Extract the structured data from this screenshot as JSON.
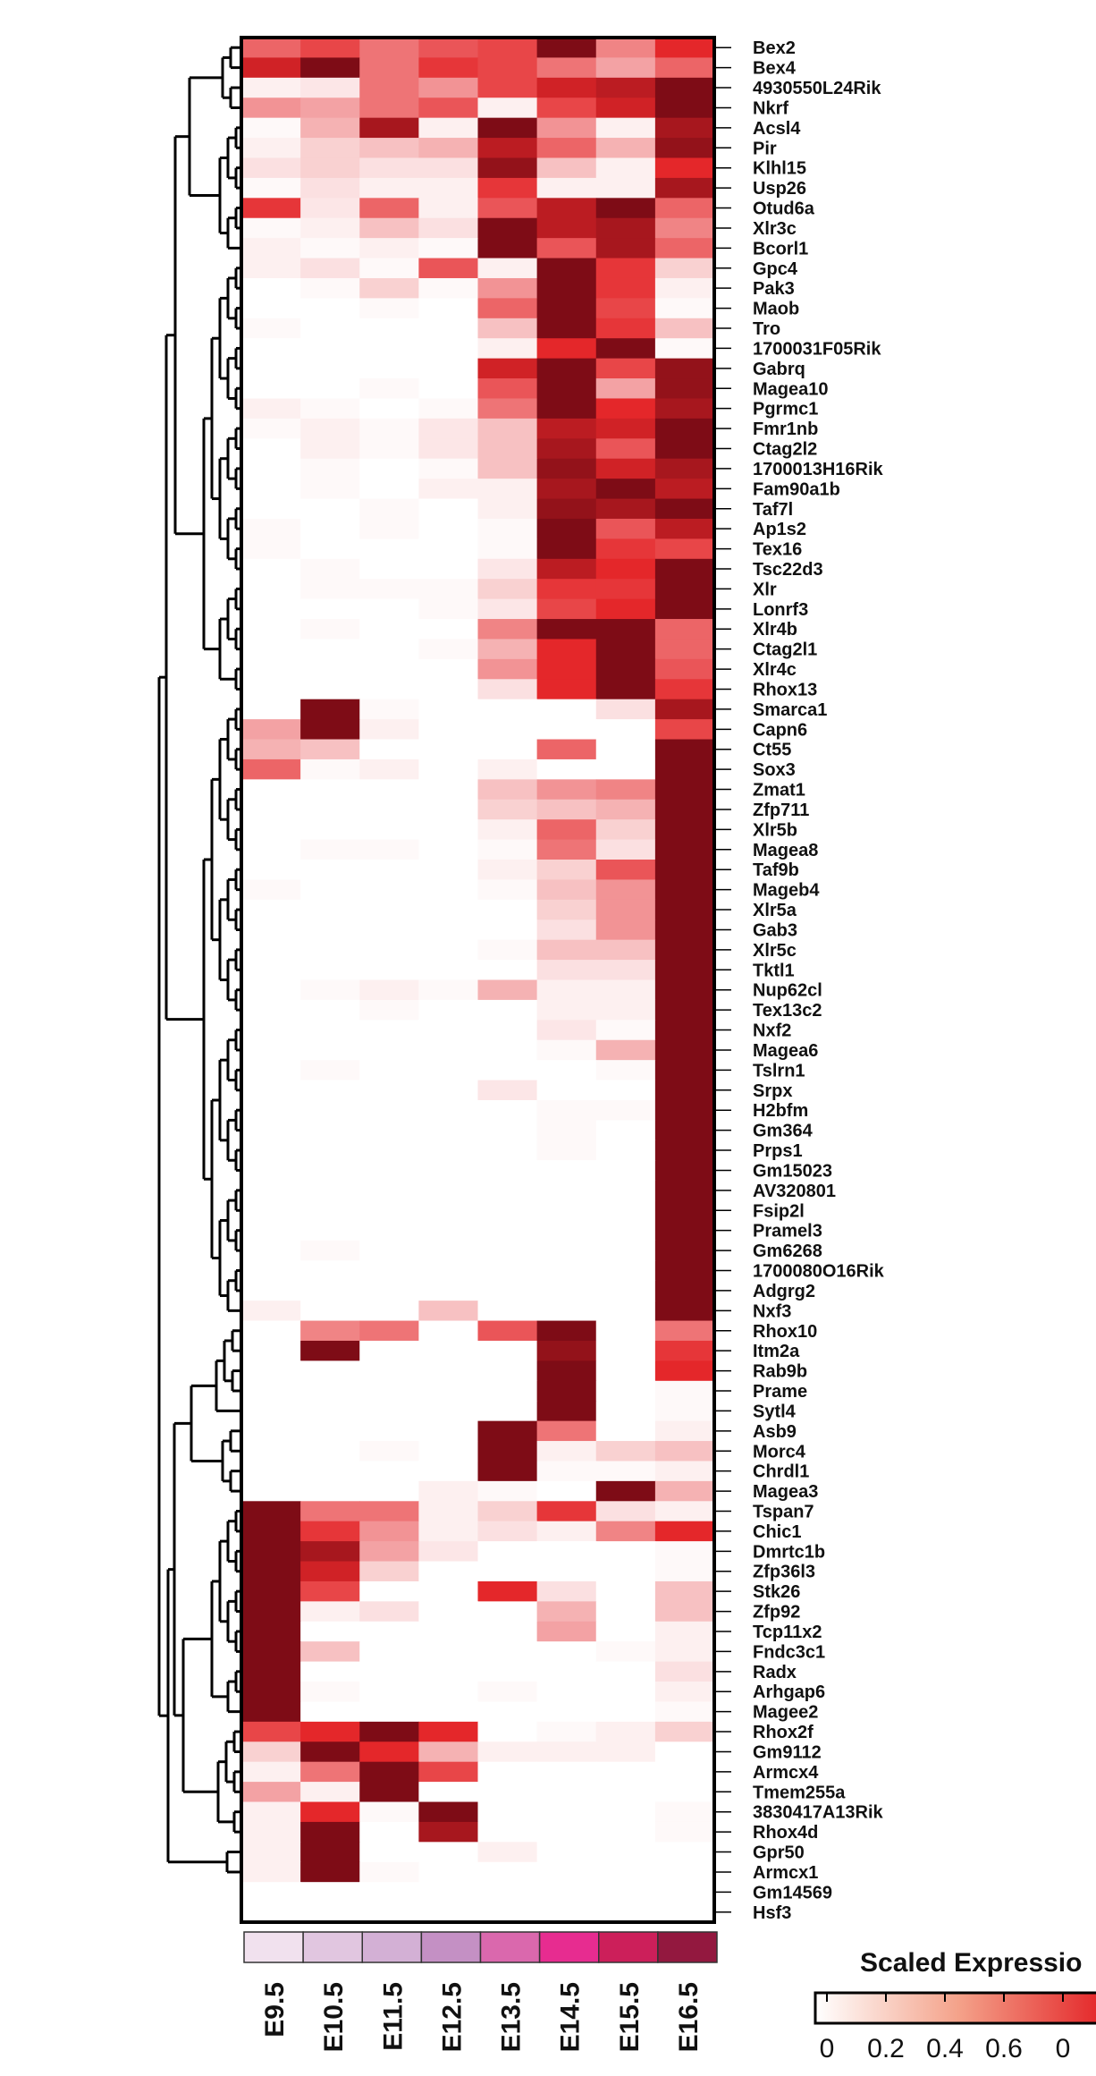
{
  "chart_data": {
    "type": "heatmap",
    "title": "",
    "legend_title": "Scaled Expressio",
    "color_scale": {
      "min": 0,
      "max": 1,
      "low_color": "#ffffff",
      "mid_color": "#e4272a",
      "high_color": "#6a0712"
    },
    "legend_ticks": [
      "0",
      "0.2",
      "0.4",
      "0.6",
      "0"
    ],
    "columns": [
      "E9.5",
      "E10.5",
      "E11.5",
      "E12.5",
      "E13.5",
      "E14.5",
      "E15.5",
      "E16.5"
    ],
    "column_colors": [
      "#f1e1ee",
      "#e1c6e0",
      "#d3b0d5",
      "#c490c4",
      "#da68ad",
      "#e72c90",
      "#cc1f5a",
      "#93183f"
    ],
    "rows": [
      {
        "gene": "Bex2",
        "values": [
          0.5,
          0.6,
          0.45,
          0.55,
          0.6,
          0.95,
          0.4,
          0.7
        ]
      },
      {
        "gene": "Bex4",
        "values": [
          0.75,
          0.95,
          0.45,
          0.65,
          0.6,
          0.45,
          0.3,
          0.5
        ]
      },
      {
        "gene": "4930550L24Rik",
        "values": [
          0.05,
          0.08,
          0.45,
          0.35,
          0.6,
          0.75,
          0.8,
          0.95
        ]
      },
      {
        "gene": "Nkrf",
        "values": [
          0.35,
          0.3,
          0.45,
          0.55,
          0.05,
          0.6,
          0.75,
          0.95
        ]
      },
      {
        "gene": "Acsl4",
        "values": [
          0.02,
          0.25,
          0.85,
          0.05,
          0.95,
          0.35,
          0.05,
          0.85
        ]
      },
      {
        "gene": "Pir",
        "values": [
          0.05,
          0.15,
          0.2,
          0.25,
          0.8,
          0.5,
          0.25,
          0.9
        ]
      },
      {
        "gene": "Klhl15",
        "values": [
          0.1,
          0.15,
          0.1,
          0.1,
          0.9,
          0.2,
          0.05,
          0.7
        ]
      },
      {
        "gene": "Usp26",
        "values": [
          0.02,
          0.1,
          0.05,
          0.05,
          0.65,
          0.05,
          0.05,
          0.85
        ]
      },
      {
        "gene": "Otud6a",
        "values": [
          0.65,
          0.08,
          0.5,
          0.05,
          0.55,
          0.8,
          0.95,
          0.5
        ]
      },
      {
        "gene": "Xlr3c",
        "values": [
          0.02,
          0.05,
          0.2,
          0.1,
          0.95,
          0.8,
          0.85,
          0.4
        ]
      },
      {
        "gene": "Bcorl1",
        "values": [
          0.05,
          0.02,
          0.05,
          0.02,
          0.95,
          0.55,
          0.85,
          0.5
        ]
      },
      {
        "gene": "Gpc4",
        "values": [
          0.05,
          0.1,
          0.02,
          0.55,
          0.05,
          0.95,
          0.65,
          0.15
        ]
      },
      {
        "gene": "Pak3",
        "values": [
          0.0,
          0.02,
          0.15,
          0.02,
          0.35,
          0.95,
          0.65,
          0.05
        ]
      },
      {
        "gene": "Maob",
        "values": [
          0.0,
          0.0,
          0.02,
          0.0,
          0.5,
          0.95,
          0.6,
          0.02
        ]
      },
      {
        "gene": "Tro",
        "values": [
          0.02,
          0.0,
          0.0,
          0.0,
          0.2,
          0.95,
          0.65,
          0.2
        ]
      },
      {
        "gene": "1700031F05Rik",
        "values": [
          0.0,
          0.0,
          0.0,
          0.0,
          0.05,
          0.7,
          0.95,
          0.02
        ]
      },
      {
        "gene": "Gabrq",
        "values": [
          0.0,
          0.0,
          0.0,
          0.0,
          0.75,
          0.95,
          0.6,
          0.9
        ]
      },
      {
        "gene": "Magea10",
        "values": [
          0.0,
          0.0,
          0.02,
          0.0,
          0.55,
          0.95,
          0.3,
          0.9
        ]
      },
      {
        "gene": "Pgrmc1",
        "values": [
          0.05,
          0.02,
          0.0,
          0.02,
          0.45,
          0.95,
          0.7,
          0.85
        ]
      },
      {
        "gene": "Fmr1nb",
        "values": [
          0.02,
          0.05,
          0.02,
          0.08,
          0.2,
          0.8,
          0.75,
          0.95
        ]
      },
      {
        "gene": "Ctag2l2",
        "values": [
          0.0,
          0.05,
          0.02,
          0.08,
          0.2,
          0.85,
          0.55,
          0.95
        ]
      },
      {
        "gene": "1700013H16Rik",
        "values": [
          0.0,
          0.02,
          0.0,
          0.02,
          0.2,
          0.9,
          0.75,
          0.85
        ]
      },
      {
        "gene": "Fam90a1b",
        "values": [
          0.0,
          0.02,
          0.0,
          0.05,
          0.05,
          0.85,
          0.95,
          0.8
        ]
      },
      {
        "gene": "Taf7l",
        "values": [
          0.0,
          0.0,
          0.02,
          0.0,
          0.05,
          0.9,
          0.85,
          0.95
        ]
      },
      {
        "gene": "Ap1s2",
        "values": [
          0.02,
          0.0,
          0.02,
          0.0,
          0.02,
          0.95,
          0.55,
          0.8
        ]
      },
      {
        "gene": "Tex16",
        "values": [
          0.02,
          0.0,
          0.0,
          0.0,
          0.02,
          0.95,
          0.65,
          0.6
        ]
      },
      {
        "gene": "Tsc22d3",
        "values": [
          0.0,
          0.02,
          0.0,
          0.0,
          0.08,
          0.8,
          0.7,
          0.95
        ]
      },
      {
        "gene": "Xlr",
        "values": [
          0.0,
          0.02,
          0.02,
          0.02,
          0.15,
          0.65,
          0.65,
          0.95
        ]
      },
      {
        "gene": "Lonrf3",
        "values": [
          0.0,
          0.0,
          0.0,
          0.02,
          0.08,
          0.6,
          0.7,
          0.95
        ]
      },
      {
        "gene": "Xlr4b",
        "values": [
          0.0,
          0.02,
          0.0,
          0.0,
          0.4,
          0.95,
          0.95,
          0.5
        ]
      },
      {
        "gene": "Ctag2l1",
        "values": [
          0.0,
          0.0,
          0.0,
          0.02,
          0.25,
          0.7,
          0.95,
          0.5
        ]
      },
      {
        "gene": "Xlr4c",
        "values": [
          0.0,
          0.0,
          0.0,
          0.0,
          0.35,
          0.7,
          0.95,
          0.55
        ]
      },
      {
        "gene": "Rhox13",
        "values": [
          0.0,
          0.0,
          0.0,
          0.0,
          0.1,
          0.7,
          0.95,
          0.65
        ]
      },
      {
        "gene": "Smarca1",
        "values": [
          0.0,
          0.95,
          0.02,
          0.0,
          0.0,
          0.0,
          0.1,
          0.85
        ]
      },
      {
        "gene": "Capn6",
        "values": [
          0.3,
          0.95,
          0.05,
          0.0,
          0.0,
          0.0,
          0.0,
          0.6
        ]
      },
      {
        "gene": "Ct55",
        "values": [
          0.25,
          0.2,
          0.0,
          0.0,
          0.0,
          0.5,
          0.0,
          0.95
        ]
      },
      {
        "gene": "Sox3",
        "values": [
          0.5,
          0.02,
          0.05,
          0.0,
          0.05,
          0.0,
          0.0,
          0.95
        ]
      },
      {
        "gene": "Zmat1",
        "values": [
          0.0,
          0.0,
          0.0,
          0.0,
          0.2,
          0.35,
          0.4,
          0.95
        ]
      },
      {
        "gene": "Zfp711",
        "values": [
          0.0,
          0.0,
          0.0,
          0.0,
          0.15,
          0.2,
          0.25,
          0.95
        ]
      },
      {
        "gene": "Xlr5b",
        "values": [
          0.0,
          0.0,
          0.0,
          0.0,
          0.05,
          0.5,
          0.15,
          0.95
        ]
      },
      {
        "gene": "Magea8",
        "values": [
          0.0,
          0.02,
          0.02,
          0.0,
          0.02,
          0.45,
          0.1,
          0.95
        ]
      },
      {
        "gene": "Taf9b",
        "values": [
          0.0,
          0.0,
          0.0,
          0.0,
          0.05,
          0.15,
          0.55,
          0.95
        ]
      },
      {
        "gene": "Mageb4",
        "values": [
          0.02,
          0.0,
          0.0,
          0.0,
          0.02,
          0.2,
          0.35,
          0.95
        ]
      },
      {
        "gene": "Xlr5a",
        "values": [
          0.0,
          0.0,
          0.0,
          0.0,
          0.0,
          0.15,
          0.35,
          0.95
        ]
      },
      {
        "gene": "Gab3",
        "values": [
          0.0,
          0.0,
          0.0,
          0.0,
          0.0,
          0.1,
          0.35,
          0.95
        ]
      },
      {
        "gene": "Xlr5c",
        "values": [
          0.0,
          0.0,
          0.0,
          0.0,
          0.02,
          0.2,
          0.2,
          0.95
        ]
      },
      {
        "gene": "Tktl1",
        "values": [
          0.0,
          0.0,
          0.0,
          0.0,
          0.0,
          0.1,
          0.1,
          0.95
        ]
      },
      {
        "gene": "Nup62cl",
        "values": [
          0.0,
          0.02,
          0.05,
          0.02,
          0.25,
          0.05,
          0.05,
          0.95
        ]
      },
      {
        "gene": "Tex13c2",
        "values": [
          0.0,
          0.0,
          0.02,
          0.0,
          0.0,
          0.05,
          0.05,
          0.95
        ]
      },
      {
        "gene": "Nxf2",
        "values": [
          0.0,
          0.0,
          0.0,
          0.0,
          0.0,
          0.08,
          0.02,
          0.95
        ]
      },
      {
        "gene": "Magea6",
        "values": [
          0.0,
          0.0,
          0.0,
          0.0,
          0.0,
          0.02,
          0.25,
          0.95
        ]
      },
      {
        "gene": "Tslrn1",
        "values": [
          0.0,
          0.02,
          0.0,
          0.0,
          0.0,
          0.0,
          0.02,
          0.95
        ]
      },
      {
        "gene": "Srpx",
        "values": [
          0.0,
          0.0,
          0.0,
          0.0,
          0.08,
          0.0,
          0.0,
          0.95
        ]
      },
      {
        "gene": "H2bfm",
        "values": [
          0.0,
          0.0,
          0.0,
          0.0,
          0.0,
          0.02,
          0.02,
          0.95
        ]
      },
      {
        "gene": "Gm364",
        "values": [
          0.0,
          0.0,
          0.0,
          0.0,
          0.0,
          0.02,
          0.0,
          0.95
        ]
      },
      {
        "gene": "Prps1",
        "values": [
          0.0,
          0.0,
          0.0,
          0.0,
          0.0,
          0.02,
          0.0,
          0.95
        ]
      },
      {
        "gene": "Gm15023",
        "values": [
          0.0,
          0.0,
          0.0,
          0.0,
          0.0,
          0.0,
          0.0,
          0.95
        ]
      },
      {
        "gene": "AV320801",
        "values": [
          0.0,
          0.0,
          0.0,
          0.0,
          0.0,
          0.0,
          0.0,
          0.95
        ]
      },
      {
        "gene": "Fsip2l",
        "values": [
          0.0,
          0.0,
          0.0,
          0.0,
          0.0,
          0.0,
          0.0,
          0.95
        ]
      },
      {
        "gene": "Pramel3",
        "values": [
          0.0,
          0.0,
          0.0,
          0.0,
          0.0,
          0.0,
          0.0,
          0.95
        ]
      },
      {
        "gene": "Gm6268",
        "values": [
          0.0,
          0.02,
          0.0,
          0.0,
          0.0,
          0.0,
          0.0,
          0.95
        ]
      },
      {
        "gene": "1700080O16Rik",
        "values": [
          0.0,
          0.0,
          0.0,
          0.0,
          0.0,
          0.0,
          0.0,
          0.95
        ]
      },
      {
        "gene": "Adgrg2",
        "values": [
          0.0,
          0.0,
          0.0,
          0.0,
          0.0,
          0.0,
          0.0,
          0.95
        ]
      },
      {
        "gene": "Nxf3",
        "values": [
          0.05,
          0.0,
          0.0,
          0.2,
          0.0,
          0.0,
          0.0,
          0.95
        ]
      },
      {
        "gene": "Rhox10",
        "values": [
          0.0,
          0.4,
          0.45,
          0.0,
          0.55,
          0.95,
          0.0,
          0.45
        ]
      },
      {
        "gene": "Itm2a",
        "values": [
          0.0,
          0.95,
          0.0,
          0.0,
          0.0,
          0.9,
          0.0,
          0.65
        ]
      },
      {
        "gene": "Rab9b",
        "values": [
          0.0,
          0.0,
          0.0,
          0.0,
          0.0,
          0.95,
          0.0,
          0.7
        ]
      },
      {
        "gene": "Prame",
        "values": [
          0.0,
          0.0,
          0.0,
          0.0,
          0.0,
          0.95,
          0.0,
          0.02
        ]
      },
      {
        "gene": "Sytl4",
        "values": [
          0.0,
          0.0,
          0.0,
          0.0,
          0.0,
          0.95,
          0.0,
          0.02
        ]
      },
      {
        "gene": "Asb9",
        "values": [
          0.0,
          0.0,
          0.0,
          0.0,
          0.95,
          0.45,
          0.0,
          0.05
        ]
      },
      {
        "gene": "Morc4",
        "values": [
          0.0,
          0.0,
          0.02,
          0.0,
          0.95,
          0.05,
          0.15,
          0.2
        ]
      },
      {
        "gene": "Chrdl1",
        "values": [
          0.0,
          0.0,
          0.0,
          0.0,
          0.95,
          0.02,
          0.02,
          0.05
        ]
      },
      {
        "gene": "Magea3",
        "values": [
          0.0,
          0.0,
          0.0,
          0.05,
          0.02,
          0.0,
          0.95,
          0.25
        ]
      },
      {
        "gene": "Tspan7",
        "values": [
          0.95,
          0.45,
          0.45,
          0.05,
          0.15,
          0.65,
          0.1,
          0.05
        ]
      },
      {
        "gene": "Chic1",
        "values": [
          0.95,
          0.65,
          0.35,
          0.05,
          0.1,
          0.05,
          0.4,
          0.7
        ]
      },
      {
        "gene": "Dmrtc1b",
        "values": [
          0.95,
          0.85,
          0.3,
          0.08,
          0.0,
          0.0,
          0.0,
          0.02
        ]
      },
      {
        "gene": "Zfp36l3",
        "values": [
          0.95,
          0.75,
          0.15,
          0.0,
          0.0,
          0.0,
          0.0,
          0.02
        ]
      },
      {
        "gene": "Stk26",
        "values": [
          0.95,
          0.6,
          0.0,
          0.0,
          0.7,
          0.1,
          0.0,
          0.2
        ]
      },
      {
        "gene": "Zfp92",
        "values": [
          0.95,
          0.05,
          0.1,
          0.0,
          0.0,
          0.25,
          0.0,
          0.2
        ]
      },
      {
        "gene": "Tcp11x2",
        "values": [
          0.95,
          0.0,
          0.0,
          0.0,
          0.0,
          0.3,
          0.0,
          0.05
        ]
      },
      {
        "gene": "Fndc3c1",
        "values": [
          0.95,
          0.2,
          0.0,
          0.0,
          0.0,
          0.0,
          0.02,
          0.05
        ]
      },
      {
        "gene": "Radx",
        "values": [
          0.95,
          0.0,
          0.0,
          0.0,
          0.0,
          0.0,
          0.0,
          0.1
        ]
      },
      {
        "gene": "Arhgap6",
        "values": [
          0.95,
          0.02,
          0.0,
          0.0,
          0.02,
          0.0,
          0.0,
          0.05
        ]
      },
      {
        "gene": "Magee2",
        "values": [
          0.95,
          0.0,
          0.0,
          0.0,
          0.0,
          0.0,
          0.0,
          0.02
        ]
      },
      {
        "gene": "Rhox2f",
        "values": [
          0.6,
          0.7,
          0.95,
          0.7,
          0.0,
          0.02,
          0.05,
          0.15
        ]
      },
      {
        "gene": "Gm9112",
        "values": [
          0.15,
          0.95,
          0.7,
          0.25,
          0.05,
          0.05,
          0.05,
          0.0
        ]
      },
      {
        "gene": "Armcx4",
        "values": [
          0.05,
          0.45,
          0.95,
          0.6,
          0.0,
          0.0,
          0.0,
          0.0
        ]
      },
      {
        "gene": "Tmem255a",
        "values": [
          0.3,
          0.05,
          0.95,
          0.0,
          0.0,
          0.0,
          0.0,
          0.0
        ]
      },
      {
        "gene": "3830417A13Rik",
        "values": [
          0.05,
          0.7,
          0.02,
          0.95,
          0.0,
          0.0,
          0.0,
          0.02
        ]
      },
      {
        "gene": "Rhox4d",
        "values": [
          0.05,
          0.95,
          0.0,
          0.85,
          0.0,
          0.0,
          0.0,
          0.02
        ]
      },
      {
        "gene": "Gpr50",
        "values": [
          0.05,
          0.95,
          0.0,
          0.0,
          0.05,
          0.0,
          0.0,
          0.0
        ]
      },
      {
        "gene": "Armcx1",
        "values": [
          0.05,
          0.95,
          0.02,
          0.0,
          0.0,
          0.0,
          0.0,
          0.0
        ]
      },
      {
        "gene": "Gm14569",
        "values": [
          0.0,
          0.0,
          0.0,
          0.0,
          0.0,
          0.0,
          0.0,
          0.0
        ]
      },
      {
        "gene": "Hsf3",
        "values": [
          0.0,
          0.0,
          0.0,
          0.0,
          0.0,
          0.0,
          0.0,
          0.0
        ]
      }
    ]
  }
}
